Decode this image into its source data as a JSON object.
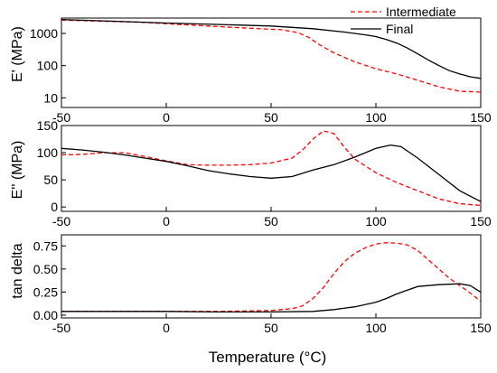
{
  "chart_data": [
    {
      "type": "line",
      "id": "storage",
      "ylabel": "E' (MPa)",
      "yscale": "log",
      "ylim": [
        5,
        3000
      ],
      "xlim": [
        -50,
        150
      ],
      "xticks": [
        "-50",
        "0",
        "50",
        "100",
        "150"
      ],
      "yticks": [
        {
          "v": 10,
          "t": "10"
        },
        {
          "v": 100,
          "t": "100"
        },
        {
          "v": 1000,
          "t": "1000"
        }
      ],
      "legend": {
        "position": "top-right",
        "show": true
      },
      "series": [
        {
          "name": "Intermediate",
          "color": "#ff0000",
          "style": "dashed",
          "points": [
            [
              -50,
              2600
            ],
            [
              -30,
              2400
            ],
            [
              -10,
              2200
            ],
            [
              0,
              2000
            ],
            [
              20,
              1700
            ],
            [
              40,
              1450
            ],
            [
              55,
              1300
            ],
            [
              63,
              1050
            ],
            [
              68,
              750
            ],
            [
              73,
              450
            ],
            [
              80,
              250
            ],
            [
              90,
              130
            ],
            [
              100,
              80
            ],
            [
              110,
              55
            ],
            [
              120,
              35
            ],
            [
              130,
              22
            ],
            [
              140,
              16
            ],
            [
              150,
              15
            ]
          ]
        },
        {
          "name": "Final",
          "color": "#000000",
          "style": "solid",
          "points": [
            [
              -50,
              2700
            ],
            [
              -25,
              2400
            ],
            [
              0,
              2100
            ],
            [
              25,
              1900
            ],
            [
              50,
              1700
            ],
            [
              70,
              1400
            ],
            [
              85,
              1100
            ],
            [
              95,
              900
            ],
            [
              100,
              800
            ],
            [
              105,
              650
            ],
            [
              110,
              500
            ],
            [
              115,
              350
            ],
            [
              120,
              230
            ],
            [
              125,
              150
            ],
            [
              130,
              100
            ],
            [
              135,
              70
            ],
            [
              140,
              55
            ],
            [
              145,
              45
            ],
            [
              150,
              40
            ]
          ]
        }
      ]
    },
    {
      "type": "line",
      "id": "loss",
      "ylabel": "E'' (MPa)",
      "ylim": [
        -8,
        150
      ],
      "xlim": [
        -50,
        150
      ],
      "xticks": [
        "-50",
        "0",
        "50",
        "100",
        "150"
      ],
      "yticks": [
        {
          "v": 0,
          "t": "0"
        },
        {
          "v": 50,
          "t": "50"
        },
        {
          "v": 100,
          "t": "100"
        },
        {
          "v": 150,
          "t": "150"
        }
      ],
      "series": [
        {
          "name": "Intermediate",
          "color": "#ff0000",
          "style": "dashed",
          "points": [
            [
              -50,
              96
            ],
            [
              -40,
              97
            ],
            [
              -30,
              100
            ],
            [
              -20,
              100
            ],
            [
              -10,
              93
            ],
            [
              0,
              85
            ],
            [
              10,
              78
            ],
            [
              20,
              77
            ],
            [
              30,
              77
            ],
            [
              40,
              78
            ],
            [
              50,
              81
            ],
            [
              60,
              90
            ],
            [
              65,
              105
            ],
            [
              70,
              125
            ],
            [
              75,
              140
            ],
            [
              80,
              135
            ],
            [
              85,
              110
            ],
            [
              90,
              88
            ],
            [
              100,
              63
            ],
            [
              110,
              45
            ],
            [
              120,
              30
            ],
            [
              130,
              15
            ],
            [
              140,
              6
            ],
            [
              150,
              3
            ]
          ]
        },
        {
          "name": "Final",
          "color": "#000000",
          "style": "solid",
          "points": [
            [
              -50,
              108
            ],
            [
              -40,
              105
            ],
            [
              -30,
              101
            ],
            [
              -20,
              96
            ],
            [
              -10,
              90
            ],
            [
              0,
              84
            ],
            [
              10,
              76
            ],
            [
              20,
              67
            ],
            [
              30,
              61
            ],
            [
              40,
              56
            ],
            [
              50,
              53
            ],
            [
              60,
              56
            ],
            [
              70,
              68
            ],
            [
              80,
              78
            ],
            [
              90,
              92
            ],
            [
              100,
              108
            ],
            [
              107,
              114
            ],
            [
              112,
              111
            ],
            [
              120,
              90
            ],
            [
              130,
              60
            ],
            [
              140,
              30
            ],
            [
              150,
              10
            ]
          ]
        }
      ]
    },
    {
      "type": "line",
      "id": "tandelta",
      "ylabel": "tan delta",
      "xlabel": "Temperature (°C)",
      "ylim": [
        -0.03,
        0.87
      ],
      "xlim": [
        -50,
        150
      ],
      "xticks": [
        "-50",
        "0",
        "50",
        "100",
        "150"
      ],
      "yticks": [
        {
          "v": 0.0,
          "t": "0.00"
        },
        {
          "v": 0.25,
          "t": "0.25"
        },
        {
          "v": 0.5,
          "t": "0.50"
        },
        {
          "v": 0.75,
          "t": "0.75"
        }
      ],
      "series": [
        {
          "name": "Intermediate",
          "color": "#ff0000",
          "style": "dashed",
          "points": [
            [
              -50,
              0.04
            ],
            [
              -25,
              0.04
            ],
            [
              0,
              0.04
            ],
            [
              25,
              0.04
            ],
            [
              50,
              0.05
            ],
            [
              60,
              0.07
            ],
            [
              65,
              0.1
            ],
            [
              70,
              0.18
            ],
            [
              75,
              0.3
            ],
            [
              80,
              0.45
            ],
            [
              85,
              0.58
            ],
            [
              90,
              0.67
            ],
            [
              95,
              0.73
            ],
            [
              100,
              0.77
            ],
            [
              105,
              0.785
            ],
            [
              110,
              0.78
            ],
            [
              115,
              0.76
            ],
            [
              120,
              0.7
            ],
            [
              125,
              0.6
            ],
            [
              130,
              0.5
            ],
            [
              135,
              0.4
            ],
            [
              140,
              0.32
            ],
            [
              145,
              0.24
            ],
            [
              150,
              0.15
            ]
          ]
        },
        {
          "name": "Final",
          "color": "#000000",
          "style": "solid",
          "points": [
            [
              -50,
              0.04
            ],
            [
              -25,
              0.04
            ],
            [
              0,
              0.04
            ],
            [
              25,
              0.035
            ],
            [
              50,
              0.035
            ],
            [
              70,
              0.04
            ],
            [
              80,
              0.06
            ],
            [
              90,
              0.09
            ],
            [
              100,
              0.14
            ],
            [
              105,
              0.18
            ],
            [
              110,
              0.23
            ],
            [
              115,
              0.27
            ],
            [
              120,
              0.31
            ],
            [
              125,
              0.32
            ],
            [
              130,
              0.33
            ],
            [
              135,
              0.335
            ],
            [
              140,
              0.34
            ],
            [
              145,
              0.32
            ],
            [
              150,
              0.25
            ]
          ]
        }
      ]
    }
  ]
}
